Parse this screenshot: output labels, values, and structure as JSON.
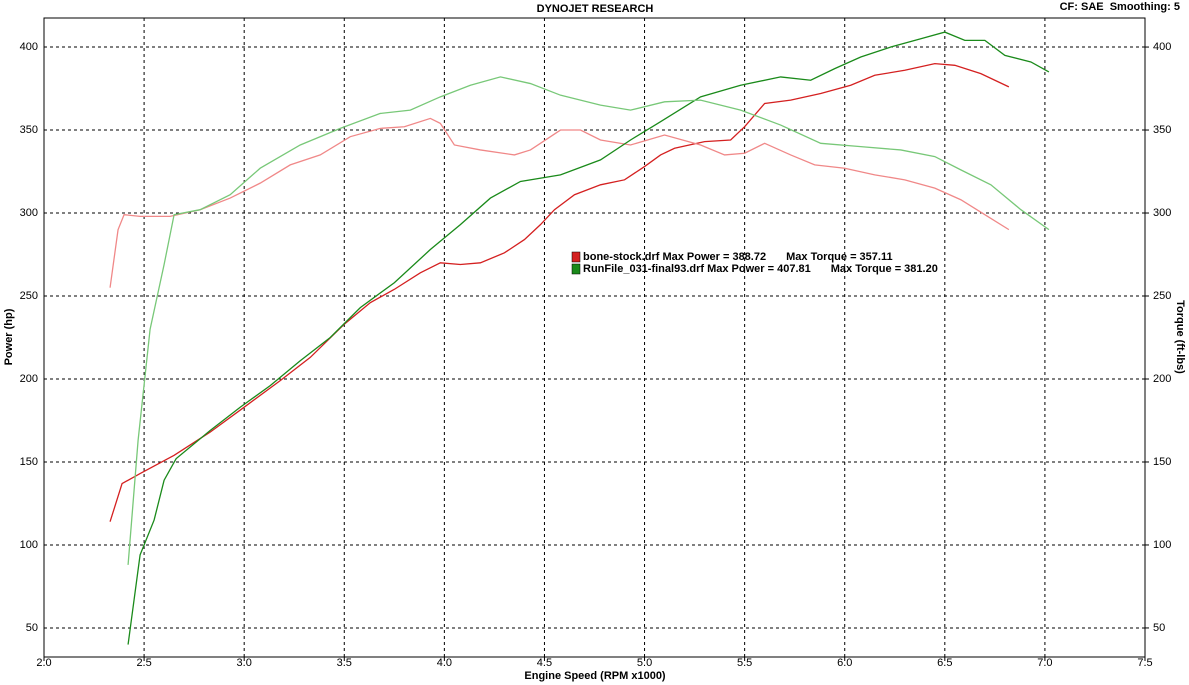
{
  "chart_data": {
    "type": "line",
    "title": "DYNOJET RESEARCH",
    "subtitle": "CF: SAE  Smoothing: 5",
    "x_label": "Engine Speed (RPM x1000)",
    "y_label": "Power (hp)",
    "y2_label": "Torque (ft-lbs)",
    "xlim": [
      2.0,
      7.5
    ],
    "xticks": [
      {
        "value": 2,
        "label": "2.0"
      },
      2.5,
      {
        "value": 3,
        "label": "3.0"
      },
      3.5,
      {
        "value": 4,
        "label": "4.0"
      },
      4.5,
      {
        "value": 5,
        "label": "5.0"
      },
      5.5,
      {
        "value": 6,
        "label": "6.0"
      },
      6.5,
      {
        "value": 7,
        "label": "7.0"
      },
      7.5
    ],
    "ylim": [
      32.5,
      417.5
    ],
    "yticks": [
      50,
      100,
      150,
      200,
      250,
      300,
      350,
      400
    ],
    "y2lim": [
      32.5,
      417.5
    ],
    "y2ticks": [
      50,
      100,
      150,
      200,
      250,
      300,
      350,
      400
    ],
    "grid": true,
    "series": [
      {
        "name": "bone-stock.drf Max Power = 388.72",
        "max_torque_label": "Max Torque = 357.11",
        "color": "#d42020",
        "x": [
          2.33,
          2.39,
          2.48,
          2.65,
          2.83,
          3.0,
          3.18,
          3.33,
          3.5,
          3.63,
          3.75,
          3.88,
          3.98,
          4.08,
          4.18,
          4.3,
          4.4,
          4.48,
          4.55,
          4.65,
          4.78,
          4.9,
          5.0,
          5.08,
          5.15,
          5.3,
          5.43,
          5.5,
          5.6,
          5.73,
          5.88,
          6.03,
          6.15,
          6.3,
          6.45,
          6.55,
          6.68,
          6.82
        ],
        "values": [
          114,
          137,
          143,
          154,
          168,
          183,
          199,
          213,
          233,
          246,
          254,
          264,
          270,
          269,
          270,
          276,
          284,
          293,
          302,
          311,
          317,
          320,
          328,
          335,
          339,
          343,
          344,
          352,
          366,
          368,
          372,
          377,
          383,
          386,
          390,
          389,
          384,
          376
        ]
      },
      {
        "axis": "y2",
        "color": "#f08888",
        "x": [
          2.33,
          2.37,
          2.4,
          2.48,
          2.63,
          2.78,
          2.93,
          3.08,
          3.23,
          3.38,
          3.53,
          3.68,
          3.8,
          3.93,
          3.98,
          4.05,
          4.18,
          4.35,
          4.43,
          4.48,
          4.58,
          4.68,
          4.78,
          4.93,
          5.1,
          5.28,
          5.4,
          5.5,
          5.6,
          5.73,
          5.85,
          6.0,
          6.15,
          6.3,
          6.45,
          6.58,
          6.7,
          6.82
        ],
        "values": [
          255,
          290,
          299,
          298,
          298,
          302,
          309,
          318,
          329,
          335,
          346,
          351,
          352,
          357,
          354,
          341,
          338,
          335,
          338,
          342,
          350,
          350,
          344,
          341,
          347,
          341,
          335,
          336,
          342,
          335,
          329,
          327,
          323,
          320,
          315,
          308,
          299,
          290
        ]
      },
      {
        "name": "RunFile_031-final93.drf Max Power = 407.81",
        "max_torque_label": "Max Torque = 381.20",
        "color": "#1a8a1a",
        "x": [
          2.42,
          2.48,
          2.55,
          2.6,
          2.66,
          2.83,
          2.98,
          3.13,
          3.28,
          3.43,
          3.58,
          3.75,
          3.93,
          4.08,
          4.23,
          4.38,
          4.58,
          4.78,
          4.93,
          5.08,
          5.28,
          5.48,
          5.68,
          5.83,
          5.95,
          6.08,
          6.23,
          6.38,
          6.5,
          6.6,
          6.7,
          6.8,
          6.93,
          7.02
        ],
        "values": [
          40,
          94,
          115,
          139,
          152,
          169,
          183,
          196,
          211,
          225,
          243,
          258,
          278,
          293,
          309,
          319,
          323,
          332,
          344,
          355,
          370,
          377,
          382,
          380,
          387,
          394,
          400,
          405,
          409,
          404,
          404,
          395,
          391,
          385
        ]
      },
      {
        "axis": "y2",
        "color": "#78c878",
        "x": [
          2.42,
          2.47,
          2.53,
          2.6,
          2.65,
          2.78,
          2.93,
          3.08,
          3.28,
          3.48,
          3.68,
          3.83,
          3.98,
          4.13,
          4.28,
          4.43,
          4.58,
          4.78,
          4.93,
          5.1,
          5.28,
          5.48,
          5.68,
          5.88,
          6.08,
          6.28,
          6.45,
          6.58,
          6.73,
          6.88,
          7.02
        ],
        "values": [
          88,
          163,
          230,
          269,
          299,
          302,
          311,
          327,
          341,
          351,
          360,
          362,
          370,
          377,
          382,
          378,
          371,
          365,
          362,
          367,
          368,
          362,
          353,
          342,
          340,
          338,
          334,
          326,
          317,
          302,
          290
        ]
      }
    ]
  }
}
